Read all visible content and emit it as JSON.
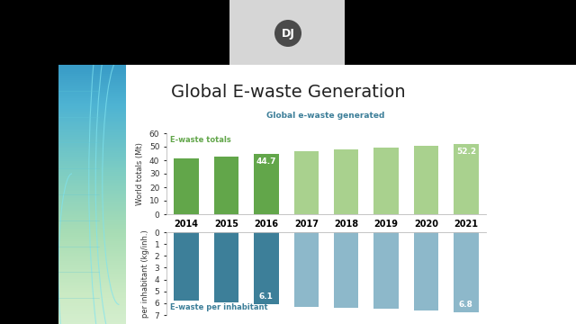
{
  "screen": {
    "avatar": "DJ",
    "slide_title": "Global E-waste Generation",
    "chart_heading": "Global e-waste generated"
  },
  "chart_data": [
    {
      "type": "bar",
      "annotation": "E-waste totals",
      "y_label": "World totals (Mt)",
      "categories": [
        "2014",
        "2015",
        "2016",
        "2017",
        "2018",
        "2019",
        "2020",
        "2021"
      ],
      "values": [
        41.5,
        43.0,
        44.7,
        46.5,
        48.0,
        49.5,
        50.6,
        52.2
      ],
      "value_labels": [
        null,
        null,
        "44.7",
        null,
        null,
        null,
        null,
        "52.2"
      ],
      "colors": [
        "#62a64a",
        "#62a64a",
        "#62a64a",
        "#a9d18e",
        "#a9d18e",
        "#a9d18e",
        "#a9d18e",
        "#a9d18e"
      ],
      "ylim": [
        0,
        60
      ],
      "yticks": [
        0,
        10,
        20,
        30,
        40,
        50,
        60
      ],
      "grid": false
    },
    {
      "type": "bar",
      "annotation": "E-waste per inhabitant",
      "y_label": "per inhabitant (kg/inh.)",
      "values": [
        5.8,
        5.9,
        6.1,
        6.3,
        6.4,
        6.5,
        6.6,
        6.8
      ],
      "value_labels": [
        null,
        null,
        "6.1",
        null,
        null,
        null,
        null,
        "6.8"
      ],
      "colors": [
        "#3d7f99",
        "#3d7f99",
        "#3d7f99",
        "#8db8ca",
        "#8db8ca",
        "#8db8ca",
        "#8db8ca",
        "#8db8ca"
      ],
      "ylim": [
        7,
        0
      ],
      "yticks": [
        0,
        1,
        2,
        3,
        4,
        5,
        6,
        7
      ],
      "grid": false,
      "tick_labels": "y"
    }
  ]
}
